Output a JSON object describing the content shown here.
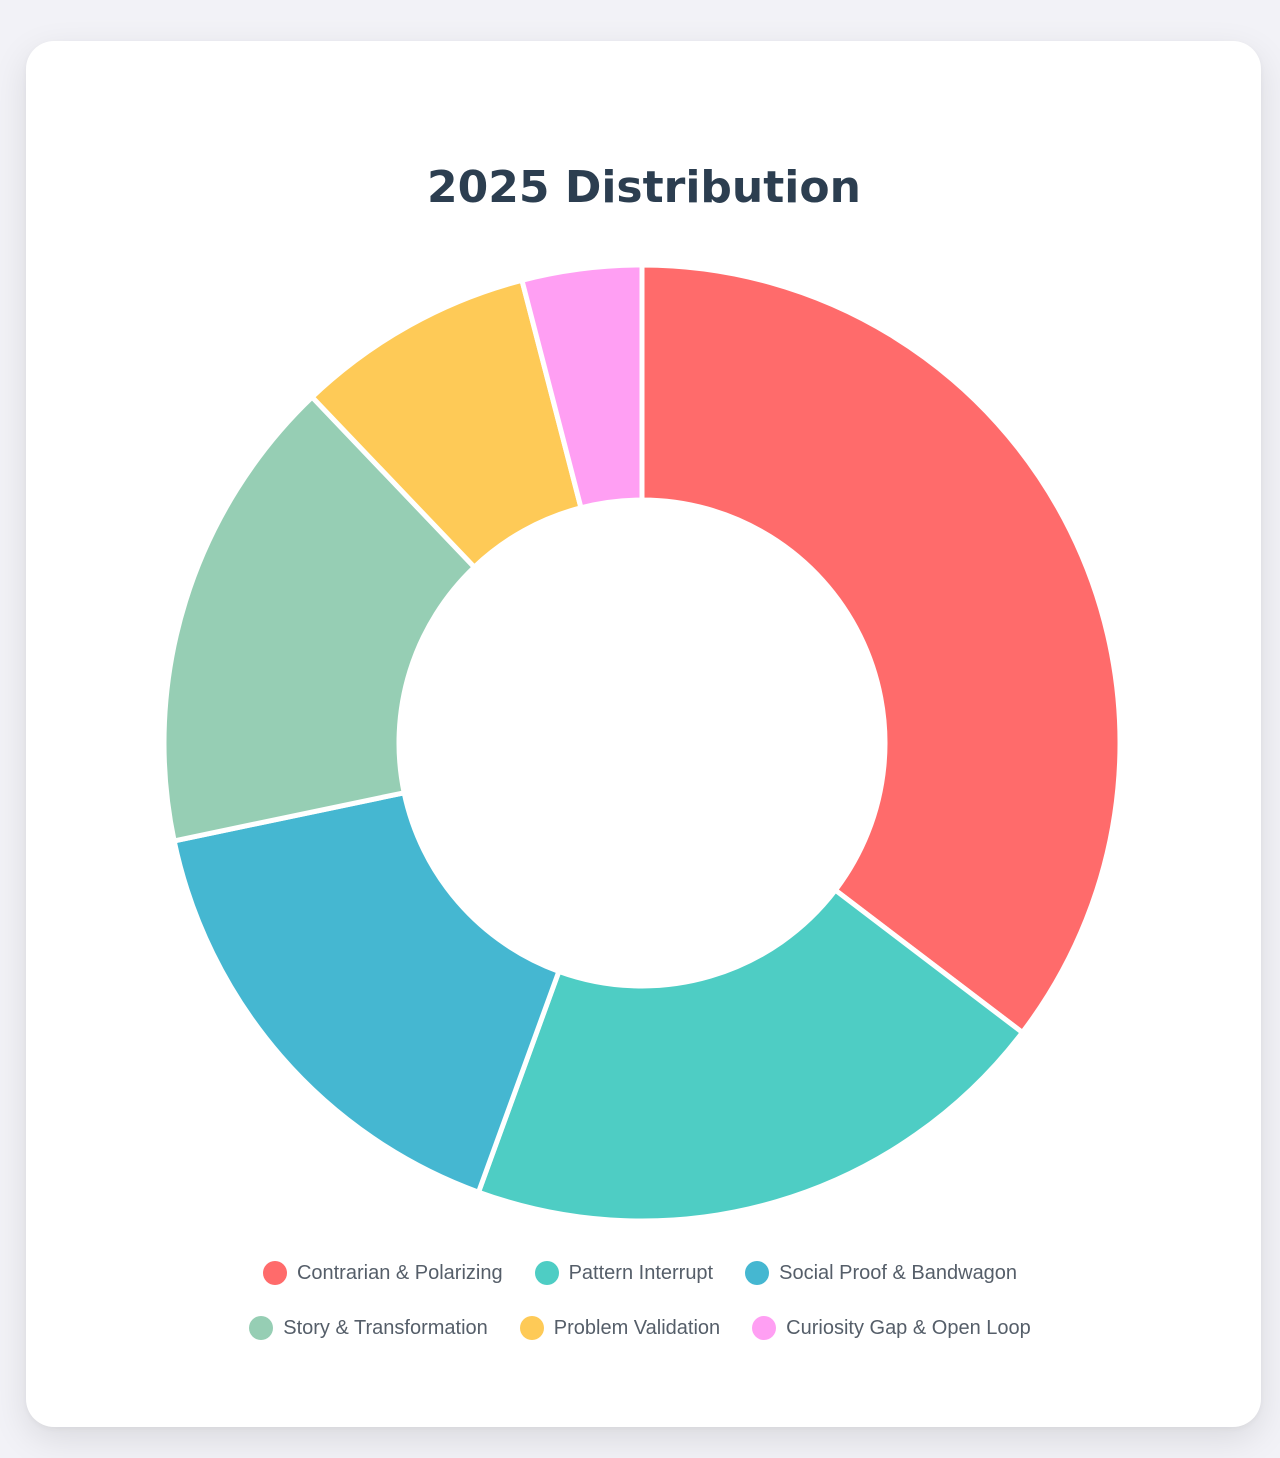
{
  "chart_data": {
    "type": "pie",
    "title": "2025 Distribution",
    "donut": true,
    "legend_position": "bottom",
    "categories": [
      "Contrarian & Polarizing",
      "Pattern Interrupt",
      "Social Proof & Bandwagon",
      "Story & Transformation",
      "Problem Validation",
      "Curiosity Gap & Open Loop"
    ],
    "values": [
      35,
      20,
      16,
      16,
      8,
      4
    ],
    "colors": [
      "#ff6b6b",
      "#4ecdc4",
      "#45b7d1",
      "#96ceb4",
      "#feca57",
      "#ff9ff3"
    ]
  }
}
